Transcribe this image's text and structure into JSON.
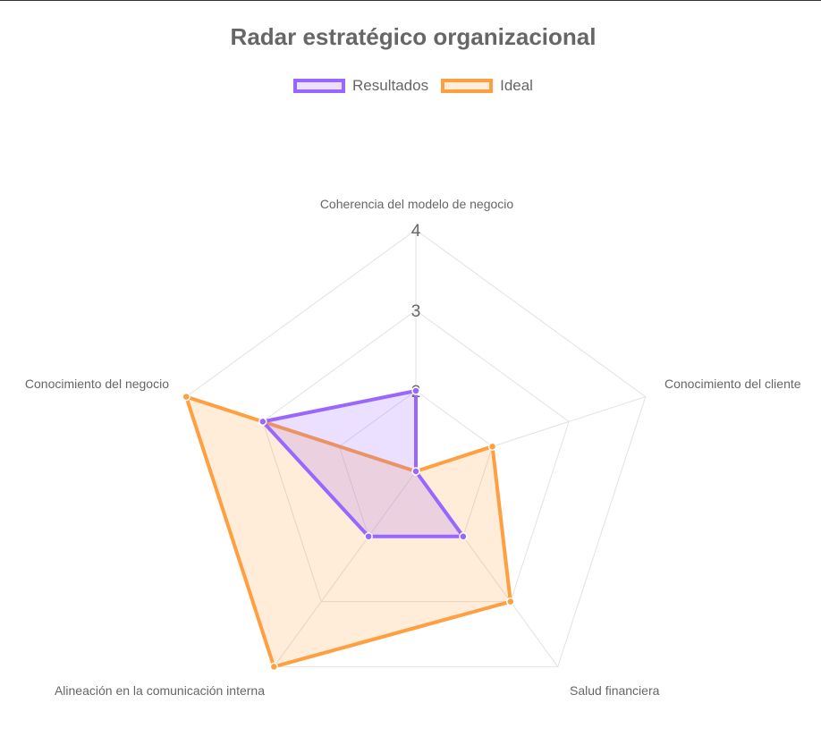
{
  "chart_data": {
    "type": "radar",
    "title": "Radar estratégico organizacional",
    "axes": [
      "Coherencia del modelo de negocio",
      "Conocimiento del cliente",
      "Salud financiera",
      "Alineación en la comunicación interna",
      "Conocimiento del negocio"
    ],
    "r_range": [
      1,
      4
    ],
    "ticks": [
      {
        "value": 4,
        "label": "4"
      },
      {
        "value": 3,
        "label": "3"
      },
      {
        "value": 2,
        "label": "2"
      }
    ],
    "series": [
      {
        "name": "Resultados",
        "values": [
          2,
          1,
          2,
          2,
          3
        ],
        "color": "#9966ff",
        "fill": "rgba(153,102,255,0.2)"
      },
      {
        "name": "Ideal",
        "values": [
          1,
          2,
          3,
          4,
          4
        ],
        "color": "#ff9f40",
        "fill": "rgba(255,159,64,0.2)"
      }
    ],
    "legend_position": "top",
    "grid": true
  }
}
